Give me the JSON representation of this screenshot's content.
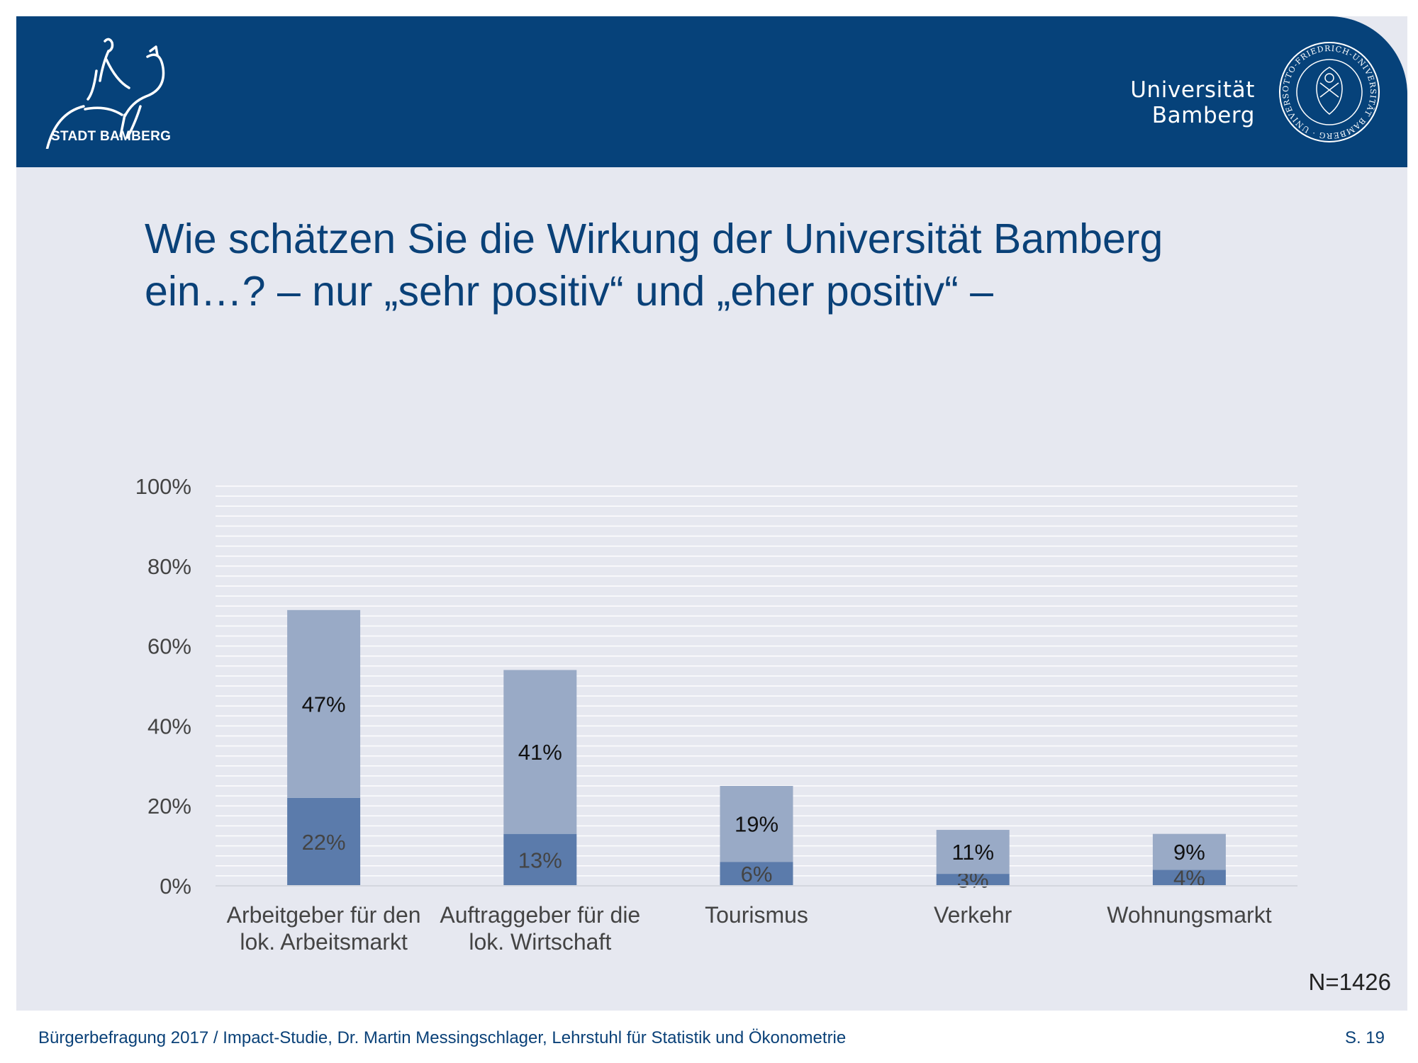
{
  "header": {
    "city_name": "STADT BAMBERG",
    "university_name": "Universität Bamberg",
    "seal_text": "OTTO-FRIEDRICH-UNIVERSITÄT BAMBERG · UNIVERSITY OF BAMBERG",
    "background_color": "#06427a"
  },
  "title": {
    "line1": "Wie schätzen Sie die Wirkung der Universität Bamberg",
    "line2": "ein…? – nur „sehr positiv“ und „eher positiv“ –"
  },
  "chart_data": {
    "type": "bar",
    "stacked": true,
    "categories": [
      [
        "Arbeitgeber für den",
        "lok. Arbeitsmarkt"
      ],
      [
        "Auftraggeber für die",
        "lok. Wirtschaft"
      ],
      [
        "Tourismus"
      ],
      [
        "Verkehr"
      ],
      [
        "Wohnungsmarkt"
      ]
    ],
    "series": [
      {
        "values": [
          22,
          13,
          6,
          3,
          4
        ],
        "labels": [
          "22%",
          "13%",
          "6%",
          "3%",
          "4%"
        ],
        "color": "#5b7bab"
      },
      {
        "values": [
          47,
          41,
          19,
          11,
          9
        ],
        "labels": [
          "47%",
          "41%",
          "19%",
          "11%",
          "9%"
        ],
        "color": "#99aac6"
      }
    ],
    "y_ticks": [
      "0%",
      "20%",
      "40%",
      "60%",
      "80%",
      "100%"
    ],
    "ylim": [
      0,
      100
    ],
    "grid": true,
    "legend": "none"
  },
  "sample_size": "N=1426",
  "footer": {
    "source": "Bürgerbefragung 2017 / Impact-Studie, Dr. Martin Messingschlager, Lehrstuhl für Statistik und Ökonometrie",
    "page": "S. 19"
  }
}
